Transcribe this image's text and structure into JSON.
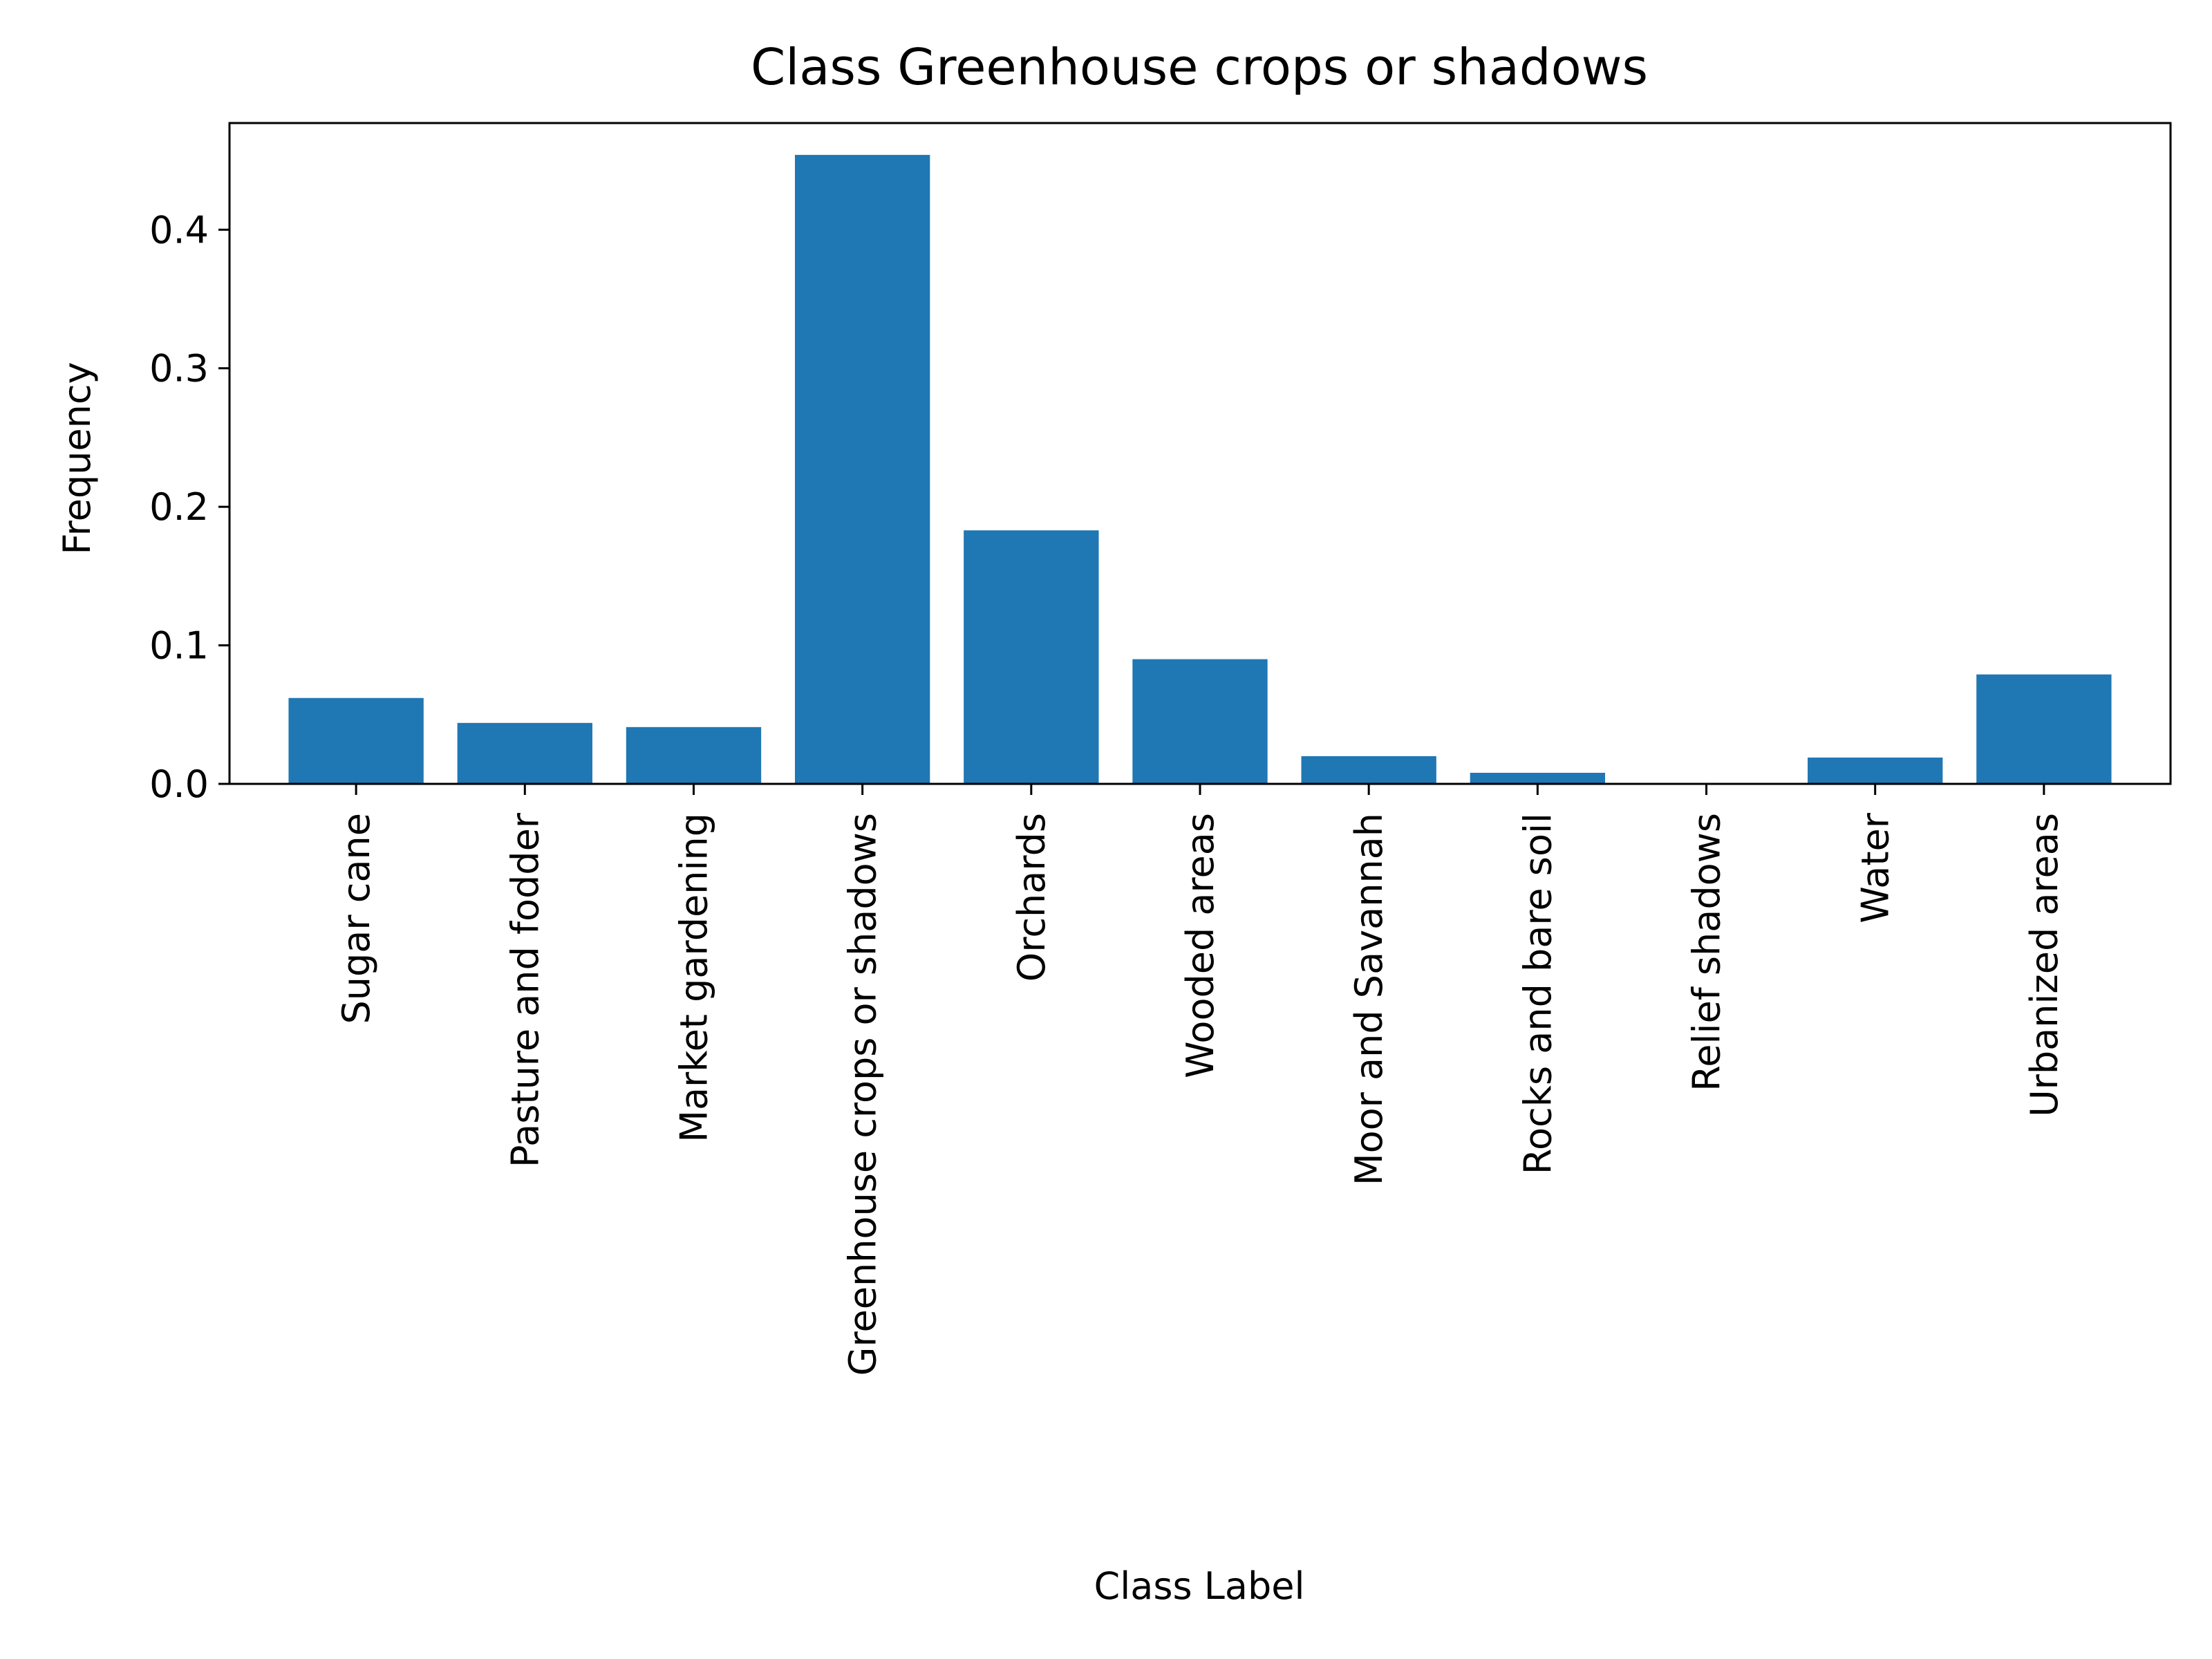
{
  "chart_data": {
    "type": "bar",
    "title": "Class Greenhouse crops or shadows",
    "xlabel": "Class Label",
    "ylabel": "Frequency",
    "categories": [
      "Sugar cane",
      "Pasture and fodder",
      "Market gardening",
      "Greenhouse crops or shadows",
      "Orchards",
      "Wooded areas",
      "Moor and Savannah",
      "Rocks and bare soil",
      "Relief shadows",
      "Water",
      "Urbanized areas"
    ],
    "values": [
      0.062,
      0.044,
      0.041,
      0.454,
      0.183,
      0.09,
      0.02,
      0.008,
      0.0,
      0.019,
      0.079
    ],
    "yticks": [
      0.0,
      0.1,
      0.2,
      0.3,
      0.4
    ],
    "ytick_labels": [
      "0.0",
      "0.1",
      "0.2",
      "0.3",
      "0.4"
    ],
    "ylim": [
      0,
      0.477
    ],
    "grid": false,
    "bar_color": "#1f77b4"
  }
}
